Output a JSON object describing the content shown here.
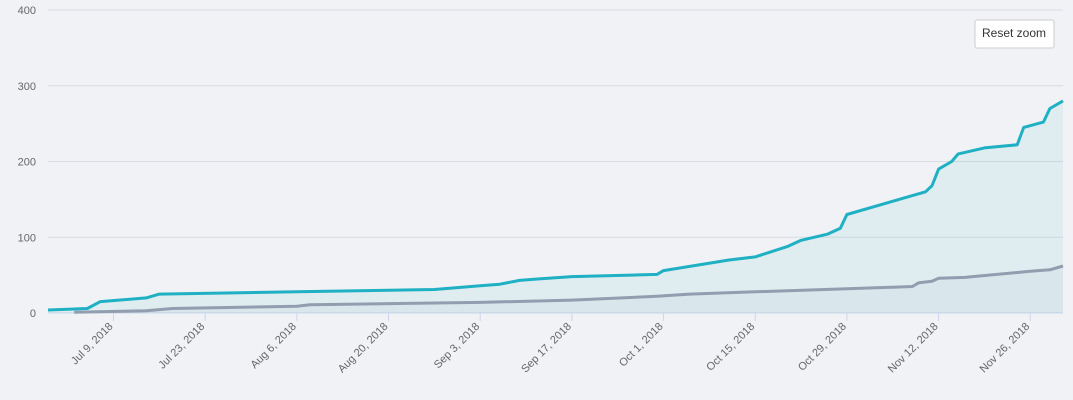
{
  "chart_data": {
    "type": "area",
    "buttons": [
      "Reset zoom"
    ],
    "xlim": [
      "2018-06-29",
      "2018-12-01"
    ],
    "xticks": [
      {
        "value": "2018-07-09",
        "label": "Jul 9, 2018"
      },
      {
        "value": "2018-07-23",
        "label": "Jul 23, 2018"
      },
      {
        "value": "2018-08-06",
        "label": "Aug 6, 2018"
      },
      {
        "value": "2018-08-20",
        "label": "Aug 20, 2018"
      },
      {
        "value": "2018-09-03",
        "label": "Sep 3, 2018"
      },
      {
        "value": "2018-09-17",
        "label": "Sep 17, 2018"
      },
      {
        "value": "2018-10-01",
        "label": "Oct 1, 2018"
      },
      {
        "value": "2018-10-15",
        "label": "Oct 15, 2018"
      },
      {
        "value": "2018-10-29",
        "label": "Oct 29, 2018"
      },
      {
        "value": "2018-11-12",
        "label": "Nov 12, 2018"
      },
      {
        "value": "2018-11-26",
        "label": "Nov 26, 2018"
      }
    ],
    "ylim": [
      0,
      400
    ],
    "yticks": [
      0,
      100,
      200,
      300,
      400
    ],
    "grid": true,
    "series": [
      {
        "color": "#1fb0c3",
        "x": [
          "2018-06-29",
          "2018-07-05",
          "2018-07-07",
          "2018-07-14",
          "2018-07-16",
          "2018-08-06",
          "2018-08-27",
          "2018-09-03",
          "2018-09-06",
          "2018-09-09",
          "2018-09-12",
          "2018-09-17",
          "2018-09-30",
          "2018-10-01",
          "2018-10-11",
          "2018-10-15",
          "2018-10-20",
          "2018-10-22",
          "2018-10-26",
          "2018-10-28",
          "2018-10-29",
          "2018-11-10",
          "2018-11-11",
          "2018-11-12",
          "2018-11-14",
          "2018-11-15",
          "2018-11-19",
          "2018-11-24",
          "2018-11-25",
          "2018-11-28",
          "2018-11-29",
          "2018-12-01"
        ],
        "values": [
          4,
          6,
          15,
          20,
          25,
          28,
          31,
          36,
          38,
          43,
          45,
          48,
          51,
          56,
          70,
          74,
          88,
          96,
          104,
          112,
          130,
          160,
          168,
          190,
          200,
          210,
          218,
          222,
          245,
          252,
          270,
          280
        ]
      },
      {
        "color": "#939db0",
        "x": [
          "2018-07-03",
          "2018-07-14",
          "2018-07-18",
          "2018-08-06",
          "2018-08-08",
          "2018-09-03",
          "2018-09-17",
          "2018-09-30",
          "2018-10-05",
          "2018-10-15",
          "2018-10-29",
          "2018-11-08",
          "2018-11-09",
          "2018-11-11",
          "2018-11-12",
          "2018-11-16",
          "2018-11-26",
          "2018-11-29",
          "2018-12-01"
        ],
        "values": [
          1,
          3,
          6,
          9,
          11,
          14,
          17,
          22,
          25,
          28,
          32,
          35,
          40,
          42,
          46,
          47,
          55,
          57,
          62
        ]
      }
    ]
  }
}
